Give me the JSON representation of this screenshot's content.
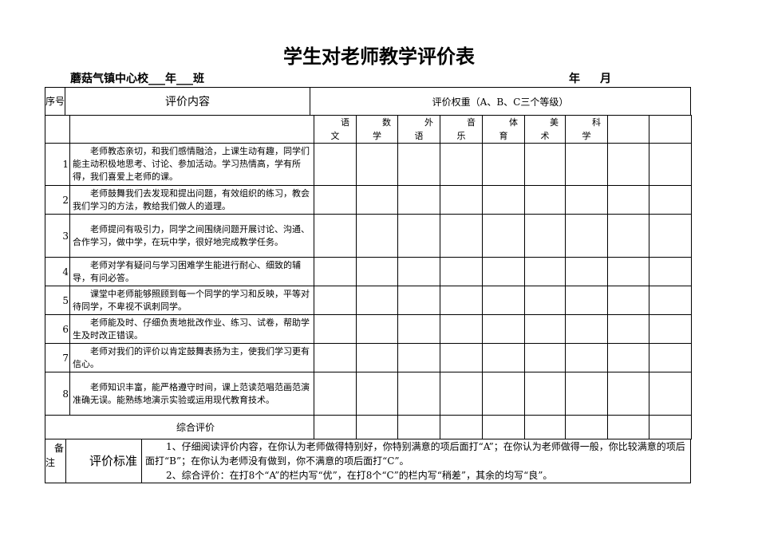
{
  "title": "学生对老师教学评价表",
  "subtitle": {
    "school": "蘑菇气镇中心校___年___班",
    "year": "年",
    "month": "月"
  },
  "header": {
    "seq": "序号",
    "content": "评价内容",
    "weight": "评价权重（A、B、C三个等级）"
  },
  "subjects": [
    [
      "语",
      "文"
    ],
    [
      "数",
      "学"
    ],
    [
      "外",
      "语"
    ],
    [
      "音",
      "乐"
    ],
    [
      "体",
      "育"
    ],
    [
      "美",
      "术"
    ],
    [
      "科",
      "学"
    ],
    [
      "",
      ""
    ],
    [
      "",
      ""
    ]
  ],
  "rows": [
    {
      "num": "1",
      "text": "老师教态亲切，和我们感情融洽，上课生动有趣，同学们能主动积极地思考、讨论、参加活动。学习热情高，学有所得，我们喜爱上老师的课。"
    },
    {
      "num": "2",
      "text": "老师鼓舞我们去发现和提出问题，有效组织的练习，教会我们学习的方法，教给我们做人的道理。"
    },
    {
      "num": "3",
      "text": "老师提问有吸引力，同学之间围绕问题开展讨论、沟通、合作学习，做中学，在玩中学，很好地完成教学任务。"
    },
    {
      "num": "4",
      "text": "老师对学有疑问与学习困难学生能进行耐心、细致的辅导，有问必答。"
    },
    {
      "num": "5",
      "text": "课堂中老师能够照顾到每一个同学的学习和反映，平等对待同学，不卑视不讽刺同学。"
    },
    {
      "num": "6",
      "text": "老师能及时、仔细负责地批改作业、练习、试卷，帮助学生及时改正错误。"
    },
    {
      "num": "7",
      "text": "老师对我们的评价以肯定鼓舞表扬为主，使我们学习更有信心。"
    },
    {
      "num": "8",
      "text": "老师知识丰富，能严格遵守时间，课上范读范唱范画范演准确无误。能熟练地演示实验或运用现代教育技术。"
    }
  ],
  "summary": "综合评价",
  "notes": {
    "label_a": "备",
    "label_b": "注",
    "criteria": "评价标准",
    "line1": "1、仔细阅读评价内容，在你认为老师做得特别好，你特别满意的项后面打“A”；在你认为老师做得一般，你比较满意的项后面打“B”；在你认为老师没有做到，你不满意的项后面打“C”。",
    "line2": "2、综合评价：在打8个“A”的栏内写“优”，在打8个“C”的栏内写“稍差”，其余的均写“良”。"
  }
}
